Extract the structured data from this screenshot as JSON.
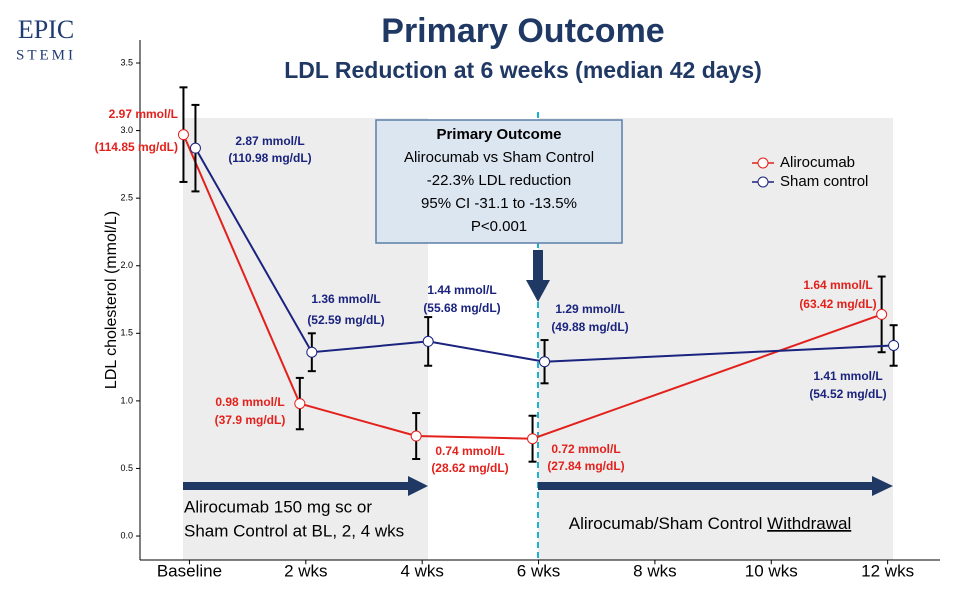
{
  "logo": {
    "top": "EPIC",
    "bottom": "STEMI"
  },
  "chart_data": {
    "type": "line",
    "title": "Primary Outcome",
    "subtitle": "LDL Reduction at 6 weeks (median 42 days)",
    "y_label": "LDL cholesterol (mmol/L)",
    "xlim": [
      -0.85,
      12.9
    ],
    "ylim": [
      -0.15,
      3.6
    ],
    "xticks": [
      {
        "value": 0,
        "label": "Baseline"
      },
      {
        "value": 2,
        "label": "2 wks"
      },
      {
        "value": 4,
        "label": "4 wks"
      },
      {
        "value": 6,
        "label": "6 wks"
      },
      {
        "value": 8,
        "label": "8 wks"
      },
      {
        "value": 10,
        "label": "10 wks"
      },
      {
        "value": 12,
        "label": "12 wks"
      }
    ],
    "yticks": [
      {
        "value": 0,
        "label": "0.0"
      },
      0.5,
      {
        "value": 1,
        "label": "1.0"
      },
      1.5,
      {
        "value": 2,
        "label": "2.0"
      },
      2.5,
      {
        "value": 3,
        "label": "3.0"
      },
      3.5
    ],
    "legend": "upper right",
    "series": [
      {
        "name": "Alirocumab",
        "color": "#e3211c",
        "x": [
          0,
          2,
          4,
          6,
          12
        ],
        "values": [
          2.97,
          0.98,
          0.74,
          0.72,
          1.64
        ],
        "errors": [
          0.35,
          0.19,
          0.17,
          0.17,
          0.28
        ],
        "value_labels": [
          [
            "2.97 mmol/L",
            "(114.85 mg/dL)"
          ],
          [
            "0.98 mmol/L",
            "(37.9 mg/dL)"
          ],
          [
            "0.74 mmol/L",
            "(28.62 mg/dL)"
          ],
          [
            "0.72 mmol/L",
            "(27.84 mg/dL)"
          ],
          [
            "1.64 mmol/L",
            "(63.42 mg/dL)"
          ]
        ]
      },
      {
        "name": "Sham control",
        "color": "#1a237e",
        "x": [
          0,
          2,
          4,
          6,
          12
        ],
        "values": [
          2.87,
          1.36,
          1.44,
          1.29,
          1.41
        ],
        "errors": [
          0.32,
          0.14,
          0.18,
          0.16,
          0.15
        ],
        "value_labels": [
          [
            "2.87 mmol/L",
            "(110.98 mg/dL)"
          ],
          [
            "1.36 mmol/L",
            "(52.59 mg/dL)"
          ],
          [
            "1.44 mmol/L",
            "(55.68 mg/dL)"
          ],
          [
            "1.29 mmol/L",
            "(49.88 mg/dL)"
          ],
          [
            "1.41 mmol/L",
            "(54.52 mg/dL)"
          ]
        ]
      }
    ],
    "annotation": {
      "title": "Primary Outcome",
      "lines": [
        "Alirocumab vs Sham Control",
        "-22.3% LDL reduction",
        "95% CI -31.1 to -13.5%",
        "P<0.001"
      ]
    },
    "phases": [
      {
        "lines": [
          "Alirocumab 150 mg sc or",
          "Sham Control at BL, 2, 4 wks"
        ]
      },
      {
        "text": "Alirocumab/Sham Control ",
        "underlined": "Withdrawal"
      }
    ]
  }
}
